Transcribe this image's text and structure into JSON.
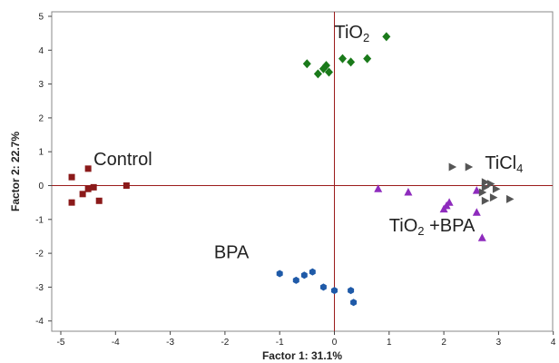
{
  "chart_data": {
    "type": "scatter",
    "xlabel": "Factor 1: 31.1%",
    "ylabel": "Factor 2: 22.7%",
    "xlim": [
      -5.2,
      4.1
    ],
    "ylim": [
      -4.2,
      5.2
    ],
    "xticks": [
      "-5",
      "-4",
      "-3",
      "-2",
      "-1",
      "0",
      "1",
      "2",
      "3",
      "4"
    ],
    "yticks": [
      "5",
      "4",
      "3",
      "2",
      "1",
      "0",
      "-1",
      "-2",
      "-3",
      "-4"
    ],
    "reference_lines": {
      "x": 0,
      "y": 0,
      "color": "#9b1c1c"
    },
    "series": [
      {
        "color": "#8b1a1a",
        "marker": "square",
        "points": [
          [
            -4.8,
            0.25
          ],
          [
            -4.5,
            0.5
          ],
          [
            -4.6,
            -0.25
          ],
          [
            -4.5,
            -0.1
          ],
          [
            -4.4,
            -0.05
          ],
          [
            -4.3,
            -0.45
          ],
          [
            -4.8,
            -0.5
          ],
          [
            -3.8,
            0.0
          ]
        ]
      },
      {
        "color": "#1a7a1a",
        "marker": "diamond",
        "points": [
          [
            -0.5,
            3.6
          ],
          [
            -0.3,
            3.3
          ],
          [
            -0.2,
            3.45
          ],
          [
            -0.15,
            3.55
          ],
          [
            -0.1,
            3.35
          ],
          [
            0.15,
            3.75
          ],
          [
            0.3,
            3.65
          ],
          [
            0.6,
            3.75
          ],
          [
            0.95,
            4.4
          ]
        ]
      },
      {
        "color": "#1f5aa8",
        "marker": "hexagon",
        "points": [
          [
            -1.0,
            -2.6
          ],
          [
            -0.7,
            -2.8
          ],
          [
            -0.55,
            -2.65
          ],
          [
            -0.4,
            -2.55
          ],
          [
            -0.2,
            -3.0
          ],
          [
            0.0,
            -3.1
          ],
          [
            0.3,
            -3.1
          ],
          [
            0.35,
            -3.45
          ]
        ]
      },
      {
        "color": "#8e2bbd",
        "marker": "triangle-up",
        "points": [
          [
            0.8,
            -0.1
          ],
          [
            1.35,
            -0.2
          ],
          [
            2.0,
            -0.7
          ],
          [
            2.05,
            -0.6
          ],
          [
            2.1,
            -0.5
          ],
          [
            2.6,
            -0.15
          ],
          [
            2.6,
            -0.8
          ],
          [
            2.7,
            -1.55
          ]
        ]
      },
      {
        "color": "#555555",
        "marker": "triangle-right",
        "points": [
          [
            2.15,
            0.55
          ],
          [
            2.45,
            0.55
          ],
          [
            2.75,
            0.1
          ],
          [
            2.85,
            0.05
          ],
          [
            2.75,
            -0.05
          ],
          [
            2.95,
            -0.1
          ],
          [
            2.7,
            -0.2
          ],
          [
            3.2,
            -0.4
          ],
          [
            2.75,
            -0.45
          ],
          [
            2.9,
            -0.35
          ]
        ]
      }
    ],
    "annotations": [
      {
        "text": "Control",
        "x": -4.4,
        "y": 0.6
      },
      {
        "text": "TiO",
        "sub": "2",
        "x": 0.0,
        "y": 4.35
      },
      {
        "text": "TiCl",
        "sub": "4",
        "x": 2.75,
        "y": 0.5
      },
      {
        "text": "TiO",
        "sub": "2",
        "tail": " +BPA",
        "x": 1.0,
        "y": -1.35
      },
      {
        "text": "BPA",
        "x": -2.2,
        "y": -2.15
      }
    ]
  }
}
